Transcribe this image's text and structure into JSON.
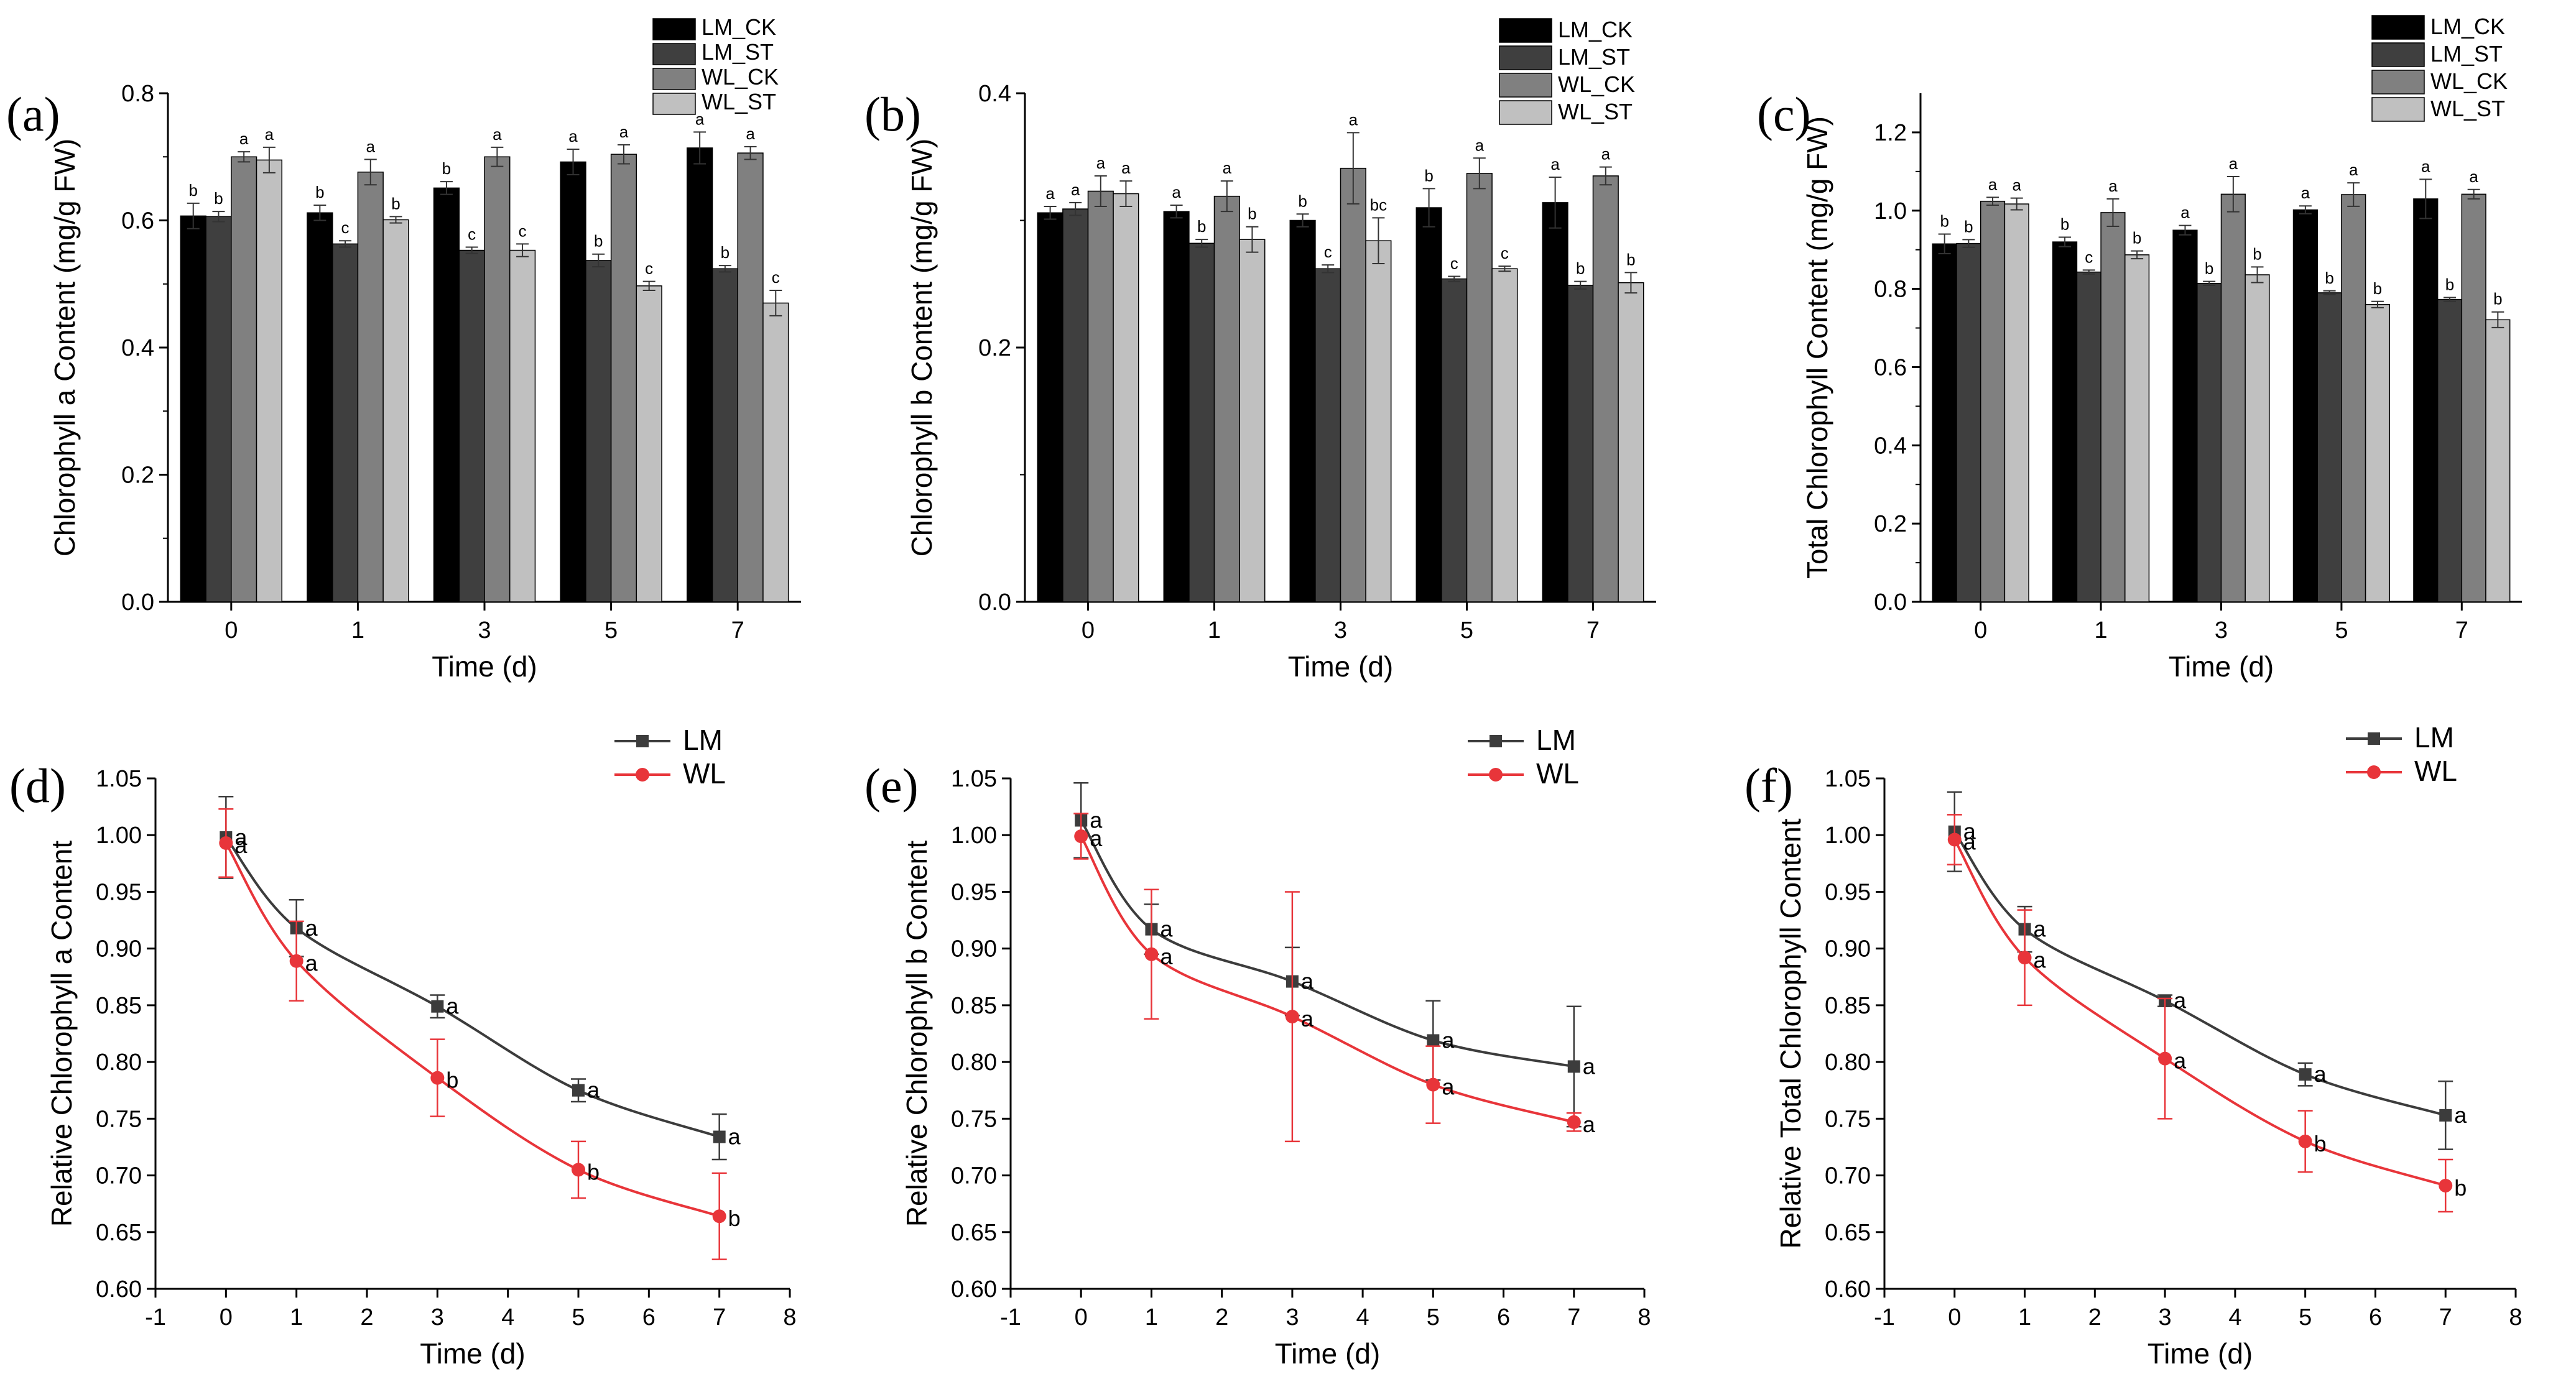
{
  "chart_data": [
    {
      "panel": "(a)",
      "type": "bar",
      "categories": [
        "0",
        "1",
        "3",
        "5",
        "7"
      ],
      "series": [
        {
          "name": "LM_CK",
          "color": "#000000",
          "values": [
            0.607,
            0.612,
            0.651,
            0.692,
            0.714
          ],
          "err": [
            0.02,
            0.012,
            0.01,
            0.02,
            0.025
          ],
          "sig": [
            "b",
            "b",
            "b",
            "a",
            "a"
          ]
        },
        {
          "name": "LM_ST",
          "color": "#3f3f3f",
          "values": [
            0.606,
            0.563,
            0.553,
            0.537,
            0.524
          ],
          "err": [
            0.008,
            0.005,
            0.005,
            0.01,
            0.005
          ],
          "sig": [
            "b",
            "c",
            "c",
            "b",
            "b"
          ]
        },
        {
          "name": "WL_CK",
          "color": "#808080",
          "values": [
            0.7,
            0.676,
            0.7,
            0.704,
            0.706
          ],
          "err": [
            0.008,
            0.02,
            0.015,
            0.015,
            0.01
          ],
          "sig": [
            "a",
            "a",
            "a",
            "a",
            "a"
          ]
        },
        {
          "name": "WL_ST",
          "color": "#c0c0c0",
          "values": [
            0.695,
            0.601,
            0.553,
            0.497,
            0.47
          ],
          "err": [
            0.02,
            0.005,
            0.01,
            0.007,
            0.02
          ],
          "sig": [
            "a",
            "b",
            "c",
            "c",
            "c"
          ]
        }
      ],
      "ylabel": "Chlorophyll a Content (mg/g FW)",
      "xlabel": "Time (d)",
      "ylim": [
        0,
        0.8
      ],
      "yticks": [
        "0.0",
        "0.2",
        "0.4",
        "0.6",
        "0.8"
      ]
    },
    {
      "panel": "(b)",
      "type": "bar",
      "categories": [
        "0",
        "1",
        "3",
        "5",
        "7"
      ],
      "series": [
        {
          "name": "LM_CK",
          "color": "#000000",
          "values": [
            0.306,
            0.307,
            0.3,
            0.31,
            0.314
          ],
          "err": [
            0.005,
            0.005,
            0.005,
            0.015,
            0.02
          ],
          "sig": [
            "a",
            "a",
            "b",
            "b",
            "a"
          ]
        },
        {
          "name": "LM_ST",
          "color": "#3f3f3f",
          "values": [
            0.309,
            0.282,
            0.262,
            0.254,
            0.249
          ],
          "err": [
            0.005,
            0.003,
            0.003,
            0.002,
            0.003
          ],
          "sig": [
            "a",
            "b",
            "c",
            "c",
            "b"
          ]
        },
        {
          "name": "WL_CK",
          "color": "#808080",
          "values": [
            0.323,
            0.319,
            0.341,
            0.337,
            0.335
          ],
          "err": [
            0.012,
            0.012,
            0.028,
            0.012,
            0.007
          ],
          "sig": [
            "a",
            "a",
            "a",
            "a",
            "a"
          ]
        },
        {
          "name": "WL_ST",
          "color": "#c0c0c0",
          "values": [
            0.321,
            0.285,
            0.284,
            0.262,
            0.251
          ],
          "err": [
            0.01,
            0.01,
            0.018,
            0.002,
            0.008
          ],
          "sig": [
            "a",
            "b",
            "bc",
            "c",
            "b"
          ]
        }
      ],
      "ylabel": "Chlorophyll b Content (mg/g FW)",
      "xlabel": "Time (d)",
      "ylim": [
        0,
        0.4
      ],
      "yticks": [
        "0.0",
        "0.2",
        "0.4"
      ]
    },
    {
      "panel": "(c)",
      "type": "bar",
      "categories": [
        "0",
        "1",
        "3",
        "5",
        "7"
      ],
      "series": [
        {
          "name": "LM_CK",
          "color": "#000000",
          "values": [
            0.915,
            0.92,
            0.95,
            1.002,
            1.03
          ],
          "err": [
            0.025,
            0.012,
            0.012,
            0.01,
            0.05
          ],
          "sig": [
            "b",
            "b",
            "a",
            "a",
            "a"
          ]
        },
        {
          "name": "LM_ST",
          "color": "#3f3f3f",
          "values": [
            0.916,
            0.843,
            0.814,
            0.79,
            0.773
          ],
          "err": [
            0.01,
            0.005,
            0.005,
            0.005,
            0.005
          ],
          "sig": [
            "b",
            "c",
            "b",
            "b",
            "b"
          ]
        },
        {
          "name": "WL_CK",
          "color": "#808080",
          "values": [
            1.024,
            0.995,
            1.042,
            1.041,
            1.042
          ],
          "err": [
            0.01,
            0.035,
            0.045,
            0.03,
            0.012
          ],
          "sig": [
            "a",
            "a",
            "a",
            "a",
            "a"
          ]
        },
        {
          "name": "WL_ST",
          "color": "#c0c0c0",
          "values": [
            1.017,
            0.887,
            0.836,
            0.76,
            0.721
          ],
          "err": [
            0.015,
            0.01,
            0.02,
            0.008,
            0.02
          ],
          "sig": [
            "a",
            "b",
            "b",
            "b",
            "b"
          ]
        }
      ],
      "ylabel": "Total Chlorophyll Content (mg/g FW)",
      "xlabel": "Time (d)",
      "ylim": [
        0,
        1.3
      ],
      "yticks": [
        "0.0",
        "0.2",
        "0.4",
        "0.6",
        "0.8",
        "1.0",
        "1.2"
      ]
    },
    {
      "panel": "(d)",
      "type": "line",
      "x": [
        0,
        1,
        3,
        5,
        7
      ],
      "series": [
        {
          "name": "LM",
          "color": "#3c3c3c",
          "marker": "square",
          "values": [
            0.998,
            0.918,
            0.849,
            0.775,
            0.734
          ],
          "err": [
            0.036,
            0.025,
            0.01,
            0.01,
            0.02
          ],
          "sig": [
            "a",
            "a",
            "a",
            "a",
            "a"
          ]
        },
        {
          "name": "WL",
          "color": "#e8353a",
          "marker": "circle",
          "values": [
            0.993,
            0.889,
            0.786,
            0.705,
            0.664
          ],
          "err": [
            0.03,
            0.035,
            0.034,
            0.025,
            0.038
          ],
          "sig": [
            "a",
            "a",
            "b",
            "b",
            "b"
          ]
        }
      ],
      "ylabel": "Relative  Chlorophyll a Content",
      "xlabel": "Time (d)",
      "xlim": [
        -1,
        8
      ],
      "ylim": [
        0.6,
        1.05
      ],
      "xticks": [
        "-1",
        "0",
        "1",
        "2",
        "3",
        "4",
        "5",
        "6",
        "7",
        "8"
      ],
      "yticks": [
        "0.60",
        "0.65",
        "0.70",
        "0.75",
        "0.80",
        "0.85",
        "0.90",
        "0.95",
        "1.00",
        "1.05"
      ]
    },
    {
      "panel": "(e)",
      "type": "line",
      "x": [
        0,
        1,
        3,
        5,
        7
      ],
      "series": [
        {
          "name": "LM",
          "color": "#3c3c3c",
          "marker": "square",
          "values": [
            1.013,
            0.917,
            0.871,
            0.819,
            0.796
          ],
          "err": [
            0.033,
            0.022,
            0.03,
            0.035,
            0.053
          ],
          "sig": [
            "a",
            "a",
            "a",
            "a",
            "a"
          ]
        },
        {
          "name": "WL",
          "color": "#e8353a",
          "marker": "circle",
          "values": [
            0.999,
            0.895,
            0.84,
            0.78,
            0.747
          ],
          "err": [
            0.02,
            0.057,
            0.11,
            0.034,
            0.008
          ],
          "sig": [
            "a",
            "a",
            "a",
            "a",
            "a"
          ]
        }
      ],
      "ylabel": "Relative  Chlorophyll b Content",
      "xlabel": "Time (d)",
      "xlim": [
        -1,
        8
      ],
      "ylim": [
        0.6,
        1.05
      ],
      "xticks": [
        "-1",
        "0",
        "1",
        "2",
        "3",
        "4",
        "5",
        "6",
        "7",
        "8"
      ],
      "yticks": [
        "0.60",
        "0.65",
        "0.70",
        "0.75",
        "0.80",
        "0.85",
        "0.90",
        "0.95",
        "1.00",
        "1.05"
      ]
    },
    {
      "panel": "(f)",
      "type": "line",
      "x": [
        0,
        1,
        3,
        5,
        7
      ],
      "series": [
        {
          "name": "LM",
          "color": "#3c3c3c",
          "marker": "square",
          "values": [
            1.003,
            0.917,
            0.854,
            0.789,
            0.753
          ],
          "err": [
            0.035,
            0.02,
            0.005,
            0.01,
            0.03
          ],
          "sig": [
            "a",
            "a",
            "a",
            "a",
            "a"
          ]
        },
        {
          "name": "WL",
          "color": "#e8353a",
          "marker": "circle",
          "values": [
            0.996,
            0.892,
            0.803,
            0.73,
            0.691
          ],
          "err": [
            0.022,
            0.042,
            0.053,
            0.027,
            0.023
          ],
          "sig": [
            "a",
            "a",
            "a",
            "b",
            "b"
          ]
        }
      ],
      "ylabel": "Relative Total Chlorophyll Content",
      "xlabel": "Time (d)",
      "xlim": [
        -1,
        8
      ],
      "ylim": [
        0.6,
        1.05
      ],
      "xticks": [
        "-1",
        "0",
        "1",
        "2",
        "3",
        "4",
        "5",
        "6",
        "7",
        "8"
      ],
      "yticks": [
        "0.60",
        "0.65",
        "0.70",
        "0.75",
        "0.80",
        "0.85",
        "0.90",
        "0.95",
        "1.00",
        "1.05"
      ]
    }
  ]
}
